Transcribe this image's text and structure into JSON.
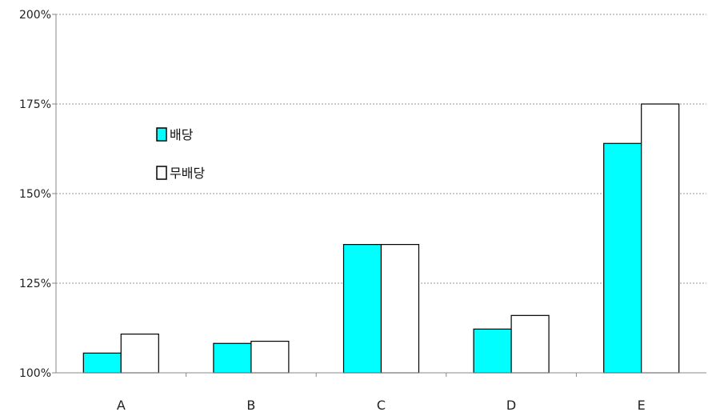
{
  "chart_data": {
    "type": "bar",
    "categories": [
      "A",
      "B",
      "C",
      "D",
      "E"
    ],
    "series": [
      {
        "name": "배당",
        "values": [
          105.5,
          108.2,
          135.8,
          112.2,
          164.0
        ],
        "color": "#00ffff"
      },
      {
        "name": "무배당",
        "values": [
          110.8,
          108.8,
          135.8,
          116.0,
          175.0
        ],
        "color": "#ffffff"
      }
    ],
    "y_ticks": [
      100,
      125,
      150,
      175,
      200
    ],
    "y_tick_labels": [
      "100%",
      "125%",
      "150%",
      "175%",
      "200%"
    ],
    "ylim": [
      100,
      200
    ],
    "grid": "horizontal dotted",
    "legend_position": "upper-left inside plot"
  }
}
